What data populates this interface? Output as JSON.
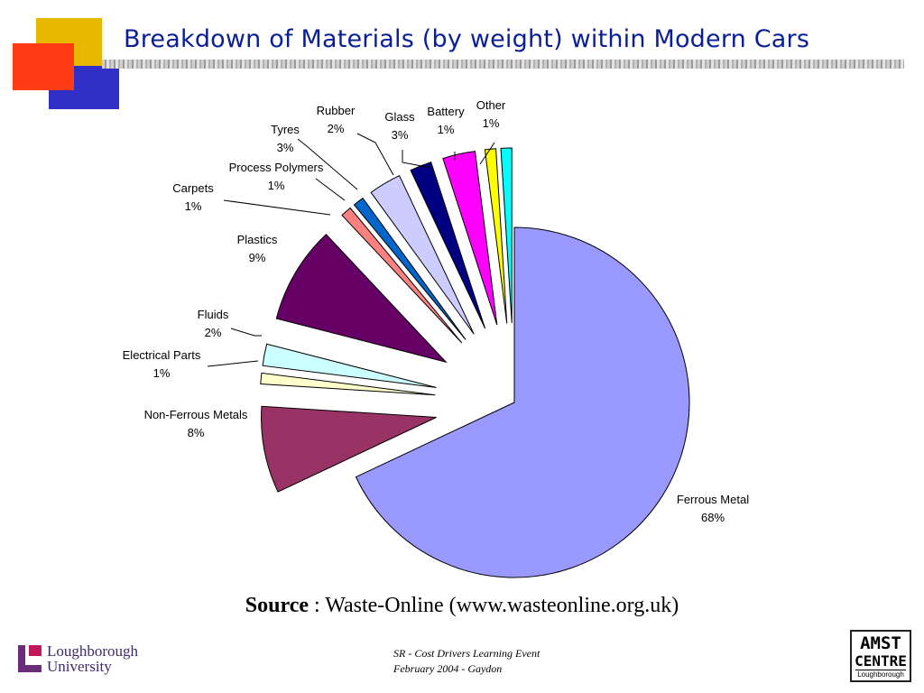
{
  "slide": {
    "title": "Breakdown of Materials (by weight) within Modern Cars",
    "source_bold": "Source",
    "source_rest": " : Waste-Online (www.wasteonline.org.uk)",
    "footer_line1": "SR  - Cost Drivers Learning Event",
    "footer_line2": "February 2004 - Gaydon",
    "university_line1": "Loughborough",
    "university_line2": "University",
    "amst_line1": "AMST",
    "amst_line2": "CENTRE",
    "amst_line3": "Loughborough"
  },
  "colors": {
    "title": "#0a1e96",
    "square_yellow": "#e8b800",
    "square_red": "#ff3c14",
    "square_blue": "#3030c8"
  },
  "chart_data": {
    "type": "pie",
    "exploded": true,
    "slices": [
      {
        "label": "Ferrous Metal",
        "value": 68,
        "pct_label": "68%",
        "color": "#9999ff"
      },
      {
        "label": "Non-Ferrous Metals",
        "value": 8,
        "pct_label": "8%",
        "color": "#993366"
      },
      {
        "label": "Electrical Parts",
        "value": 1,
        "pct_label": "1%",
        "color": "#ffffcc"
      },
      {
        "label": "Fluids",
        "value": 2,
        "pct_label": "2%",
        "color": "#ccffff"
      },
      {
        "label": "Plastics",
        "value": 9,
        "pct_label": "9%",
        "color": "#660066"
      },
      {
        "label": "Carpets",
        "value": 1,
        "pct_label": "1%",
        "color": "#ff8080"
      },
      {
        "label": "Process Polymers",
        "value": 1,
        "pct_label": "1%",
        "color": "#0066cc"
      },
      {
        "label": "Tyres",
        "value": 3,
        "pct_label": "3%",
        "color": "#ccccff"
      },
      {
        "label": "Rubber",
        "value": 2,
        "pct_label": "2%",
        "color": "#000080"
      },
      {
        "label": "Glass",
        "value": 3,
        "pct_label": "3%",
        "color": "#ff00ff"
      },
      {
        "label": "Battery",
        "value": 1,
        "pct_label": "1%",
        "color": "#ffff00"
      },
      {
        "label": "Other",
        "value": 1,
        "pct_label": "1%",
        "color": "#00ffff"
      }
    ]
  }
}
